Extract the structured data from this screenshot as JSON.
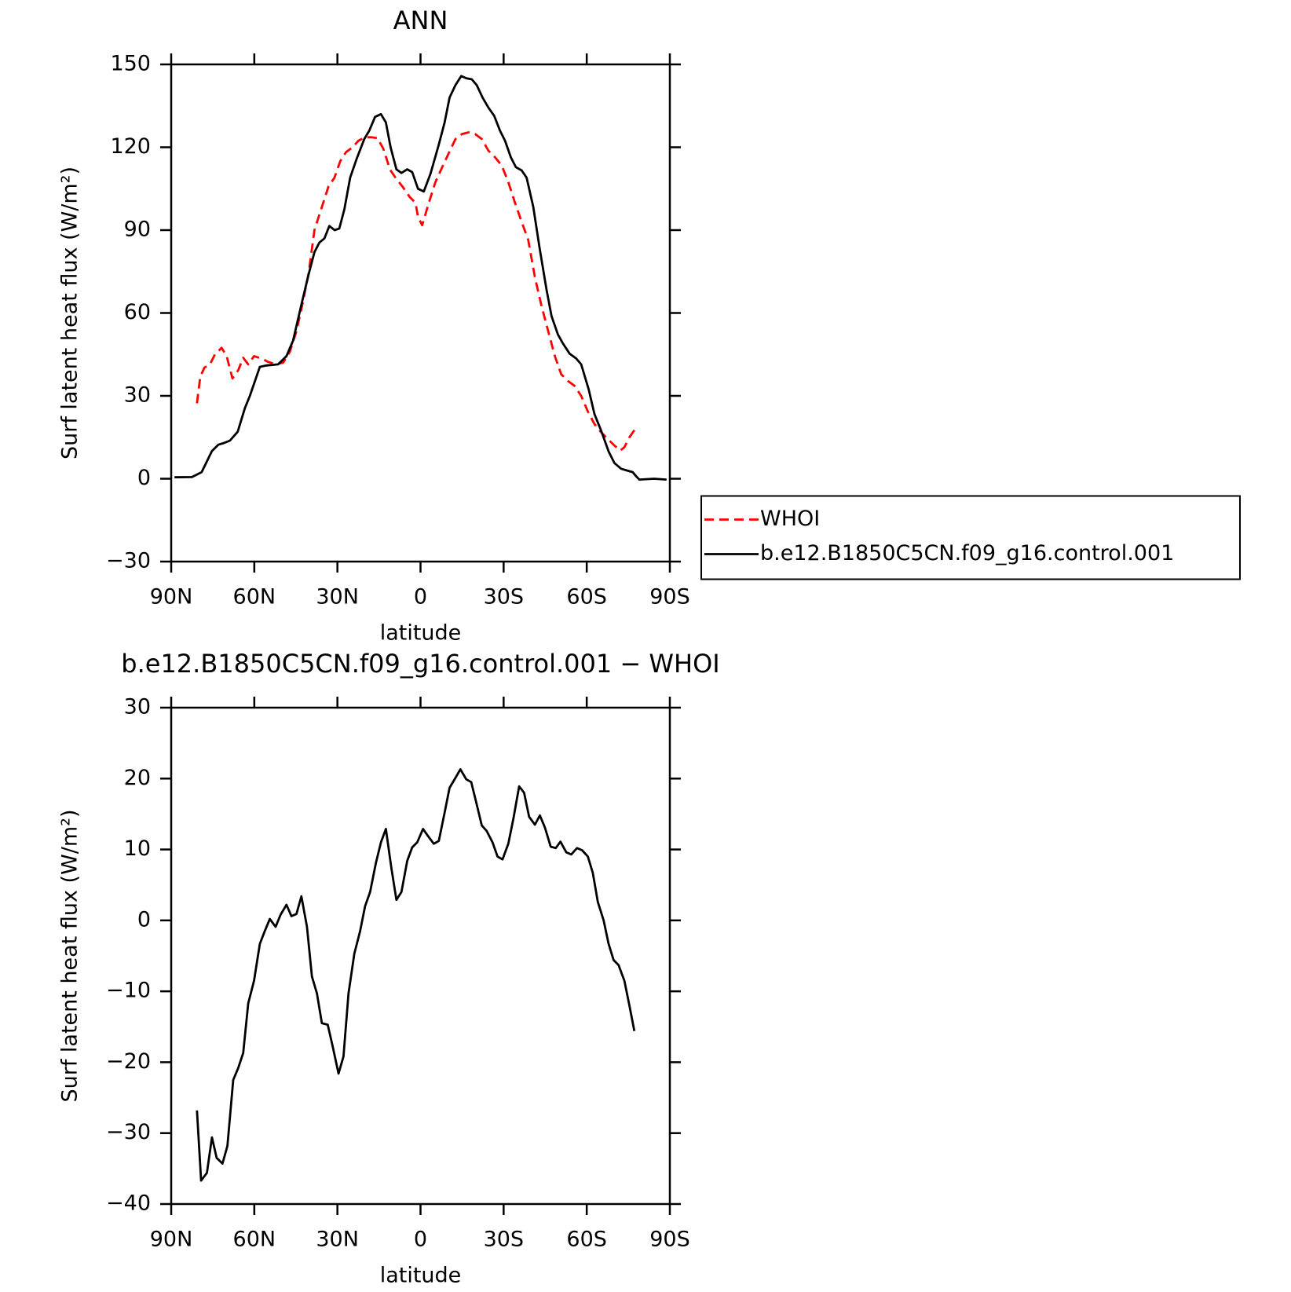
{
  "chart_data": [
    {
      "type": "line",
      "title": "ANN",
      "xlabel": "latitude",
      "ylabel": "Surf latent heat flux (W/m²)",
      "xlim": [
        90,
        -90
      ],
      "xticks": [
        {
          "value": 90,
          "label": "90N"
        },
        {
          "value": 60,
          "label": "60N"
        },
        {
          "value": 30,
          "label": "30N"
        },
        0,
        {
          "value": -30,
          "label": "30S"
        },
        {
          "value": -60,
          "label": "60S"
        },
        {
          "value": -90,
          "label": "90S"
        }
      ],
      "ylim": [
        -30,
        150
      ],
      "yticks": [
        {
          "value": -30,
          "label": "−30"
        },
        0,
        30,
        60,
        90,
        120,
        150
      ],
      "legend": "right",
      "series": [
        {
          "name": "WHOI",
          "color": "#ff0000",
          "dashed": true,
          "x": [
            80.7,
            79.5,
            78,
            76,
            74.2,
            71.8,
            70,
            67.9,
            65.8,
            64,
            62.2,
            60.1,
            57.4,
            55,
            52.3,
            49.6,
            47.2,
            44.8,
            42.5,
            40.4,
            38.3,
            35.6,
            33.2,
            31.1,
            29,
            26.9,
            24.5,
            22.4,
            20,
            17.7,
            15.5,
            13.4,
            11,
            9,
            6.6,
            3.9,
            1.8,
            0.9,
            -0.6,
            -3,
            -5.4,
            -8.1,
            -10.5,
            -12.6,
            -15,
            -17.4,
            -19.7,
            -22.1,
            -24.5,
            -26.9,
            -29.3,
            -31.7,
            -34.1,
            -36.5,
            -38.9,
            -41.3,
            -43.7,
            -46.1,
            -48.5,
            -50.8,
            -53.2,
            -55.6,
            -58,
            -60.4,
            -62.8,
            -65.2,
            -67.6,
            -70,
            -72.1,
            -73.6,
            -75.4,
            -77.5
          ],
          "values": [
            27.3,
            36.9,
            40.2,
            41.4,
            45,
            47.4,
            44.4,
            36.3,
            39.3,
            43.8,
            41.4,
            44.4,
            43.5,
            42.3,
            41.4,
            42,
            45.9,
            53.4,
            63.9,
            74.4,
            90,
            98.4,
            105.9,
            108.9,
            114.9,
            118.2,
            120,
            122.4,
            123.6,
            123.6,
            123.3,
            119.4,
            111.9,
            108.9,
            105.9,
            102,
            99.9,
            94.8,
            91.8,
            99.9,
            107.4,
            113.4,
            118.5,
            123,
            124.8,
            125.4,
            124.8,
            123,
            118.8,
            116.4,
            113.4,
            107.4,
            99.9,
            93,
            86.4,
            72.9,
            62.4,
            53.4,
            44.4,
            37.8,
            35.4,
            33.6,
            30,
            24.3,
            19.8,
            16.8,
            14.4,
            12,
            10.2,
            11.4,
            15,
            18
          ]
        },
        {
          "name": "b.e12.B1850C5CN.f09_g16.control.001",
          "color": "#000000",
          "dashed": false,
          "x": [
            88.8,
            82.5,
            79,
            75.3,
            73,
            71,
            68.8,
            66,
            63.4,
            61.6,
            58,
            55.6,
            51.4,
            48.4,
            46,
            43,
            40.4,
            38.3,
            36.5,
            34.7,
            32.9,
            31,
            29.3,
            27.5,
            25.4,
            23,
            20.3,
            18.5,
            16.4,
            14.3,
            12.5,
            10.8,
            8.7,
            6.9,
            4.8,
            3,
            0.9,
            -1.2,
            -3.6,
            -6.6,
            -8.7,
            -10.5,
            -12.6,
            -14.7,
            -16.5,
            -18.5,
            -20.3,
            -22.4,
            -24.5,
            -26.6,
            -28.7,
            -30.5,
            -32.6,
            -34.4,
            -36.5,
            -38.3,
            -40.7,
            -43,
            -45.5,
            -47.3,
            -49.6,
            -51.4,
            -53.8,
            -56.2,
            -58,
            -60.7,
            -62.8,
            -65.2,
            -67.9,
            -70,
            -72.4,
            -74.5,
            -76.6,
            -77.8,
            -79,
            -84.3,
            -88.8
          ],
          "values": [
            0.5,
            0.6,
            2.4,
            10,
            12.3,
            12.9,
            13.8,
            17,
            25.5,
            30,
            40.5,
            41,
            41.4,
            44.4,
            50,
            63,
            74,
            82,
            85.5,
            87,
            91.5,
            90,
            90.6,
            97.5,
            109,
            116,
            123,
            126,
            131,
            132,
            129,
            120,
            112,
            110.7,
            112,
            111,
            105,
            104,
            110.4,
            121,
            129,
            138,
            142.5,
            145.8,
            145,
            144.6,
            142.5,
            138,
            134.4,
            131.4,
            126,
            122.4,
            116.4,
            112.8,
            111.6,
            109,
            98.4,
            83.4,
            68.4,
            58.8,
            52.2,
            49,
            45.3,
            43.5,
            41.4,
            32.4,
            23.4,
            17.4,
            9.9,
            5.7,
            3.6,
            3,
            2.4,
            0.9,
            -0.3,
            0,
            -0.3
          ]
        }
      ]
    },
    {
      "type": "line",
      "title": "b.e12.B1850C5CN.f09_g16.control.001 − WHOI",
      "xlabel": "latitude",
      "ylabel": "Surf latent heat flux (W/m²)",
      "xlim": [
        90,
        -90
      ],
      "xticks": [
        {
          "value": 90,
          "label": "90N"
        },
        {
          "value": 60,
          "label": "60N"
        },
        {
          "value": 30,
          "label": "30N"
        },
        0,
        {
          "value": -30,
          "label": "30S"
        },
        {
          "value": -60,
          "label": "60S"
        },
        {
          "value": -90,
          "label": "90S"
        }
      ],
      "ylim": [
        -40,
        30
      ],
      "yticks": [
        {
          "value": -40,
          "label": "−40"
        },
        {
          "value": -30,
          "label": "−30"
        },
        {
          "value": -20,
          "label": "−20"
        },
        {
          "value": -10,
          "label": "−10"
        },
        0,
        10,
        20,
        30
      ],
      "series": [
        {
          "color": "#000000",
          "dashed": false,
          "x": [
            80.7,
            79.2,
            77.1,
            75.3,
            73.6,
            71.5,
            69.7,
            67.6,
            65.8,
            64,
            62.2,
            60.1,
            58,
            56.2,
            54.4,
            52.3,
            50.5,
            48.4,
            46.6,
            44.8,
            43,
            41,
            39.2,
            37.4,
            35.6,
            33.5,
            31.7,
            29.6,
            27.8,
            26,
            23.9,
            21.8,
            20,
            18.2,
            16.1,
            14.3,
            12.5,
            10.5,
            8.7,
            6.9,
            4.8,
            3,
            1.2,
            -0.9,
            -2.7,
            -4.8,
            -6.6,
            -8.7,
            -10.5,
            -12.6,
            -14.4,
            -16.5,
            -18.3,
            -20,
            -22.1,
            -23.9,
            -26,
            -27.8,
            -29.6,
            -31.7,
            -33.5,
            -35.6,
            -37.4,
            -39.2,
            -41.3,
            -43.1,
            -44.9,
            -47,
            -48.8,
            -50.5,
            -52.6,
            -54.4,
            -56.5,
            -58.3,
            -60.4,
            -62.2,
            -64,
            -66.1,
            -67.9,
            -69.7,
            -71.5,
            -73.6,
            -75.4,
            -77.2
          ],
          "values": [
            -26.8,
            -36.7,
            -35.6,
            -30.6,
            -33.5,
            -34.3,
            -31.8,
            -22.5,
            -20.8,
            -18.7,
            -11.7,
            -8.5,
            -3.3,
            -1.5,
            0.2,
            -0.9,
            0.8,
            2.2,
            0.6,
            0.9,
            3.4,
            -0.9,
            -7.9,
            -10.3,
            -14.5,
            -14.7,
            -17.8,
            -21.6,
            -19.2,
            -10.3,
            -4.7,
            -1.5,
            2,
            4,
            8.1,
            11,
            12.9,
            7.3,
            2.9,
            4,
            8.4,
            10.3,
            11,
            12.9,
            11.9,
            10.8,
            11.2,
            15.2,
            18.7,
            20.1,
            21.3,
            19.9,
            19.5,
            16.8,
            13.4,
            12.6,
            11,
            9,
            8.6,
            10.8,
            14.3,
            18.9,
            18,
            14.6,
            13.5,
            14.8,
            13.1,
            10.4,
            10.2,
            11.1,
            9.6,
            9.3,
            10.2,
            9.9,
            9,
            6.7,
            2.6,
            0,
            -3.3,
            -5.6,
            -6.3,
            -8.5,
            -12,
            -15.6
          ]
        }
      ]
    }
  ]
}
